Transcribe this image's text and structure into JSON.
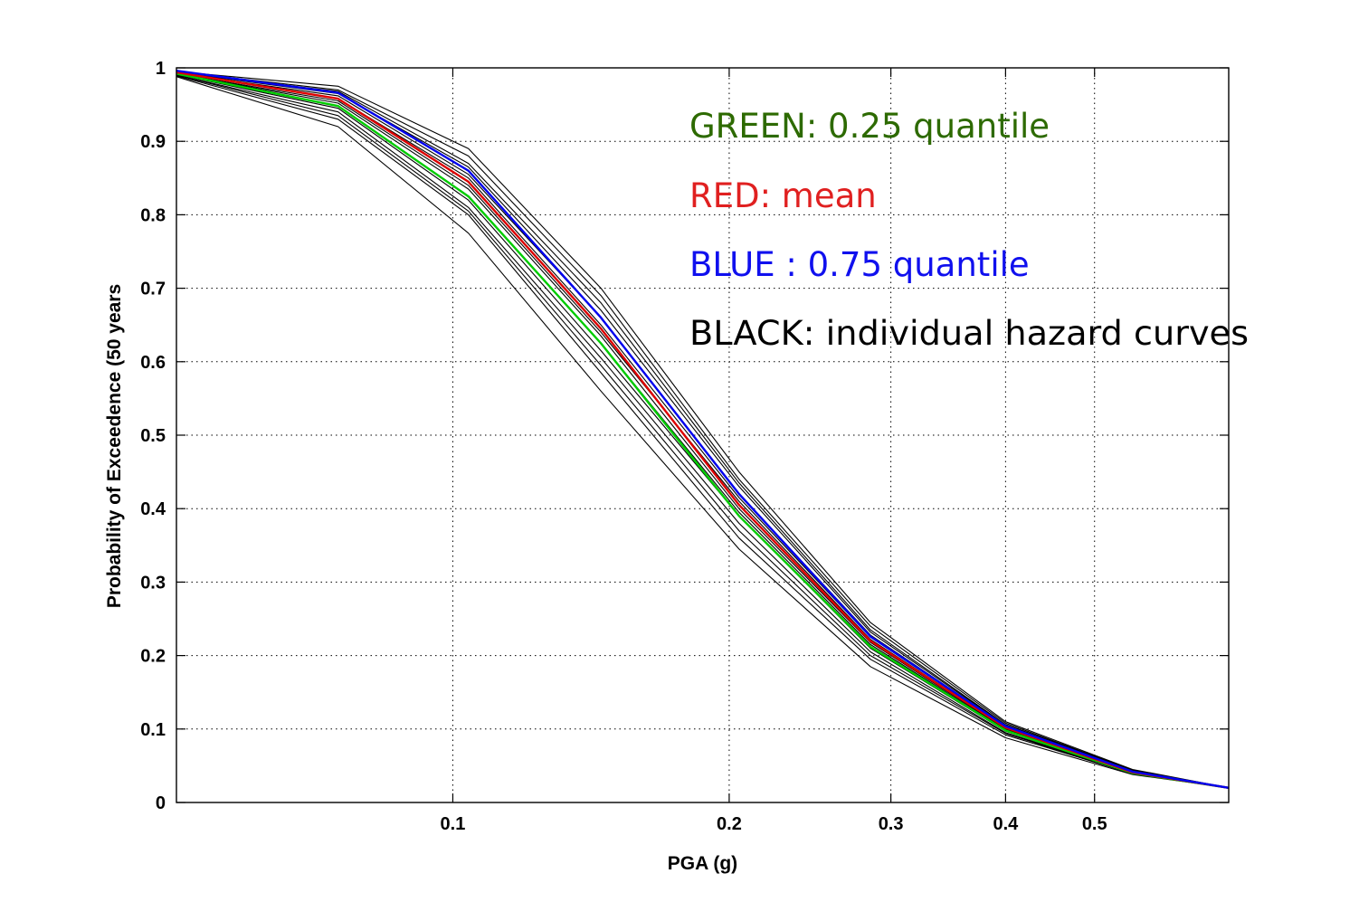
{
  "chart_data": {
    "type": "line",
    "title": "",
    "xlabel": "PGA (g)",
    "ylabel": "Probability of Exceedence (50 years",
    "xscale": "log",
    "xlim": [
      0.05,
      0.7
    ],
    "ylim": [
      0,
      1
    ],
    "xticks": [
      0.1,
      0.2,
      0.3,
      0.4,
      0.5
    ],
    "xtick_labels": [
      "0.1",
      "0.2",
      "0.3",
      "0.4",
      "0.5"
    ],
    "yticks": [
      0,
      0.1,
      0.2,
      0.3,
      0.4,
      0.5,
      0.6,
      0.7,
      0.8,
      0.9,
      1
    ],
    "ytick_labels": [
      "0",
      "0.1",
      "0.2",
      "0.3",
      "0.4",
      "0.5",
      "0.6",
      "0.7",
      "0.8",
      "0.9",
      "1"
    ],
    "grid": true,
    "grid_style": "dotted",
    "x": [
      0.05,
      0.075,
      0.104,
      0.145,
      0.205,
      0.285,
      0.4,
      0.55,
      0.7
    ],
    "series": [
      {
        "color": "#000000",
        "width": 1.1,
        "values": [
          0.995,
          0.975,
          0.89,
          0.7,
          0.45,
          0.245,
          0.11,
          0.045,
          0.02
        ]
      },
      {
        "color": "#000000",
        "width": 1.1,
        "values": [
          0.995,
          0.97,
          0.88,
          0.69,
          0.44,
          0.24,
          0.108,
          0.044,
          0.02
        ]
      },
      {
        "color": "#000000",
        "width": 1.1,
        "values": [
          0.994,
          0.968,
          0.87,
          0.68,
          0.435,
          0.235,
          0.106,
          0.044,
          0.02
        ]
      },
      {
        "color": "#000000",
        "width": 1.1,
        "values": [
          0.994,
          0.965,
          0.865,
          0.67,
          0.43,
          0.232,
          0.105,
          0.043,
          0.02
        ]
      },
      {
        "color": "#000000",
        "width": 1.1,
        "values": [
          0.993,
          0.962,
          0.855,
          0.66,
          0.42,
          0.228,
          0.104,
          0.043,
          0.02
        ]
      },
      {
        "color": "#000000",
        "width": 1.1,
        "values": [
          0.993,
          0.958,
          0.85,
          0.65,
          0.415,
          0.225,
          0.103,
          0.042,
          0.02
        ]
      },
      {
        "color": "#000000",
        "width": 1.1,
        "values": [
          0.992,
          0.955,
          0.84,
          0.64,
          0.41,
          0.222,
          0.102,
          0.042,
          0.02
        ]
      },
      {
        "color": "#000000",
        "width": 1.1,
        "values": [
          0.992,
          0.952,
          0.835,
          0.635,
          0.4,
          0.218,
          0.1,
          0.041,
          0.02
        ]
      },
      {
        "color": "#000000",
        "width": 1.1,
        "values": [
          0.991,
          0.948,
          0.825,
          0.625,
          0.395,
          0.215,
          0.099,
          0.041,
          0.02
        ]
      },
      {
        "color": "#000000",
        "width": 1.1,
        "values": [
          0.991,
          0.945,
          0.82,
          0.615,
          0.39,
          0.21,
          0.097,
          0.04,
          0.02
        ]
      },
      {
        "color": "#000000",
        "width": 1.1,
        "values": [
          0.99,
          0.94,
          0.81,
          0.605,
          0.38,
          0.205,
          0.095,
          0.04,
          0.02
        ]
      },
      {
        "color": "#000000",
        "width": 1.1,
        "values": [
          0.99,
          0.935,
          0.805,
          0.595,
          0.37,
          0.2,
          0.094,
          0.039,
          0.02
        ]
      },
      {
        "color": "#000000",
        "width": 1.1,
        "values": [
          0.989,
          0.93,
          0.8,
          0.585,
          0.36,
          0.195,
          0.092,
          0.039,
          0.02
        ]
      },
      {
        "color": "#000000",
        "width": 1.1,
        "values": [
          0.988,
          0.92,
          0.775,
          0.56,
          0.345,
          0.185,
          0.088,
          0.038,
          0.02
        ]
      },
      {
        "color": "#00cc00",
        "width": 2.4,
        "values": [
          0.992,
          0.948,
          0.825,
          0.625,
          0.39,
          0.212,
          0.098,
          0.04,
          0.02
        ]
      },
      {
        "color": "#dd0000",
        "width": 2.4,
        "values": [
          0.994,
          0.958,
          0.845,
          0.645,
          0.405,
          0.22,
          0.102,
          0.041,
          0.02
        ]
      },
      {
        "color": "#0000ee",
        "width": 2.4,
        "values": [
          0.996,
          0.966,
          0.86,
          0.66,
          0.42,
          0.226,
          0.104,
          0.042,
          0.02
        ]
      }
    ],
    "annotations": [
      {
        "text": "GREEN: 0.25 quantile",
        "color": "#2d6a00"
      },
      {
        "text": "RED: mean",
        "color": "#e02020"
      },
      {
        "text": "BLUE : 0.75 quantile",
        "color": "#1010ee"
      },
      {
        "text": "BLACK: individual hazard curves",
        "color": "#000000"
      }
    ]
  }
}
